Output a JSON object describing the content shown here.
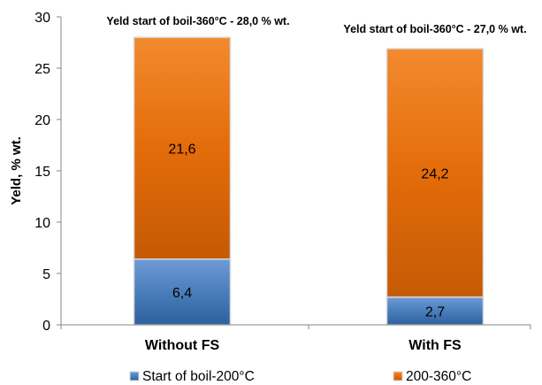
{
  "chart_data": {
    "type": "bar",
    "stacked": true,
    "categories": [
      "Without FS",
      "With FS"
    ],
    "series": [
      {
        "name": "Start of boil-200°C",
        "values": [
          6.4,
          2.7
        ],
        "labels": [
          "6,4",
          "2,7"
        ],
        "color": "#4A7EBB"
      },
      {
        "name": "200-360°C",
        "values": [
          21.6,
          24.2
        ],
        "labels": [
          "21,6",
          "24,2"
        ],
        "color": "#E46C0A"
      }
    ],
    "annotations": [
      "Yeld start of boil-360°C - 28,0 % wt.",
      "Yeld start of boil-360°C - 27,0 % wt."
    ],
    "ylabel": "Yeld, % wt.",
    "xlabel": "",
    "ylim": [
      0,
      30
    ],
    "yticks": [
      0,
      5,
      10,
      15,
      20,
      25,
      30
    ],
    "grid": false,
    "legend_position": "bottom"
  }
}
